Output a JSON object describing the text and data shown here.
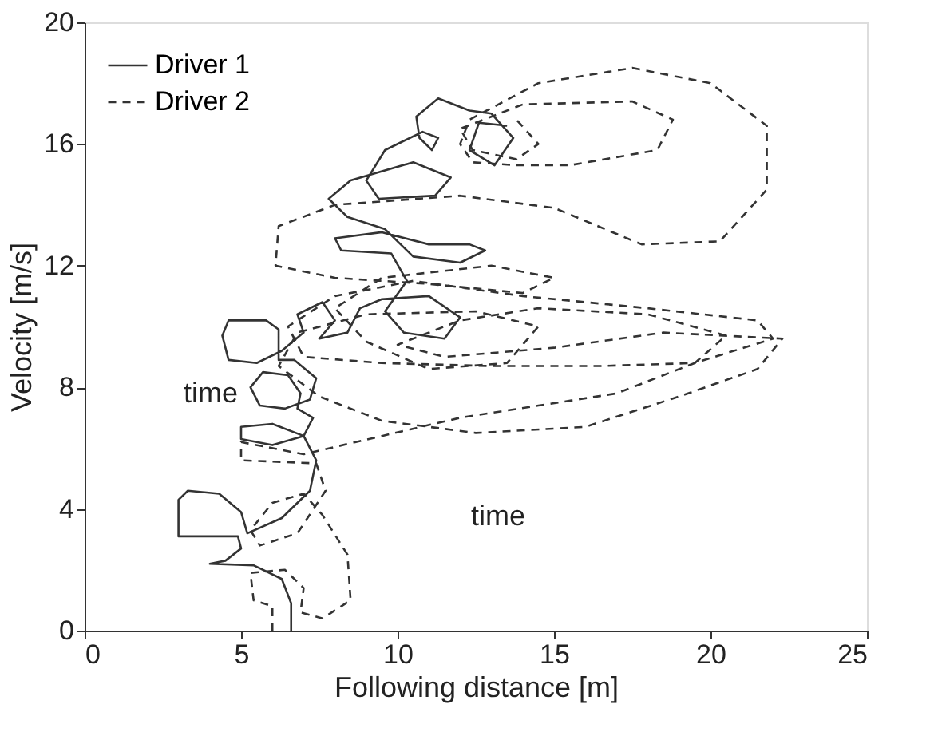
{
  "chart_data": {
    "type": "line",
    "xlabel": "Following distance [m]",
    "ylabel": "Velocity [m/s]",
    "xlim": [
      0,
      25
    ],
    "xticks": [
      0,
      5,
      10,
      15,
      20,
      25
    ],
    "ylim": [
      0,
      20
    ],
    "yticks": [
      0,
      4,
      8,
      12,
      16,
      20
    ],
    "grid": false,
    "legend": "top left",
    "marker": "none",
    "annotations": [
      "time",
      "time"
    ],
    "series": [
      {
        "name": "Driver 1",
        "color": "#333333",
        "line_style": "solid",
        "x": [
          6.6,
          6.6,
          6.3,
          5.4,
          4.0,
          4.5,
          5.0,
          4.9,
          3.0,
          3.0,
          3.3,
          4.3,
          5.0,
          5.2,
          6.3,
          7.2,
          7.4,
          7.0,
          6.0,
          5.0,
          5.0,
          6.0,
          7.0,
          7.3,
          6.8,
          6.9,
          6.5,
          5.7,
          5.3,
          5.6,
          6.4,
          7.2,
          7.4,
          6.7,
          6.2,
          6.2,
          5.8,
          4.6,
          4.4,
          4.6,
          5.5,
          6.3,
          7.0,
          6.8,
          7.6,
          8.0,
          7.5,
          8.4,
          8.8,
          9.5,
          11.0,
          12.0,
          11.5,
          10.2,
          9.6,
          10.3,
          9.8,
          8.2,
          8.0,
          9.5,
          11.0,
          12.3,
          12.8,
          12.0,
          10.5,
          9.6,
          8.4,
          7.8,
          8.5,
          10.5,
          11.7,
          11.2,
          9.4,
          9.0,
          9.6,
          10.8,
          11.3,
          11.1,
          10.7,
          10.6,
          11.3,
          12.3,
          13.0,
          13.7,
          13.1,
          12.3,
          12.6,
          13.5
        ],
        "values": [
          0,
          0.9,
          1.7,
          2.15,
          2.2,
          2.3,
          2.7,
          3.1,
          3.1,
          4.3,
          4.6,
          4.5,
          3.9,
          3.2,
          3.7,
          4.6,
          5.6,
          6.4,
          6.8,
          6.7,
          6.3,
          6.1,
          6.4,
          7.0,
          7.3,
          7.8,
          8.4,
          8.5,
          8.0,
          7.4,
          7.3,
          7.6,
          8.3,
          8.9,
          8.9,
          9.9,
          10.2,
          10.2,
          9.7,
          8.9,
          8.8,
          9.2,
          9.8,
          10.4,
          10.8,
          10.2,
          9.6,
          9.8,
          10.6,
          10.9,
          11.0,
          10.3,
          9.6,
          9.8,
          10.5,
          11.5,
          12.4,
          12.5,
          12.9,
          13.1,
          12.7,
          12.7,
          12.5,
          12.1,
          12.3,
          13.2,
          13.6,
          14.2,
          14.8,
          15.4,
          14.9,
          14.3,
          14.2,
          14.8,
          15.8,
          16.4,
          16.2,
          15.8,
          16.2,
          16.9,
          17.5,
          17.1,
          17.0,
          16.2,
          15.3,
          15.8,
          16.7,
          16.6
        ]
      },
      {
        "name": "Driver 2",
        "color": "#333333",
        "line_style": "dashed",
        "x": [
          6.0,
          6.0,
          5.4,
          5.3,
          6.4,
          7.0,
          6.9,
          7.6,
          8.5,
          8.4,
          7.6,
          7.0,
          6.0,
          5.3,
          5.6,
          6.8,
          7.7,
          7.4,
          5.0,
          5.0,
          7.0,
          9.5,
          12.0,
          14.5,
          17.0,
          19.5,
          22.0,
          21.5,
          18.0,
          14.0,
          10.5,
          8.0,
          6.5,
          7.0,
          9.5,
          13.0,
          16.5,
          19.5,
          20.5,
          18.0,
          14.5,
          12.0,
          10.0,
          11.5,
          15.0,
          18.5,
          22.3,
          21.5,
          19.0,
          16.0,
          12.5,
          9.5,
          7.5,
          6.2,
          6.8,
          9.0,
          12.5,
          14.5,
          13.5,
          11.0,
          9.0,
          8.0,
          9.5,
          13.0,
          15.0,
          14.0,
          11.0,
          8.0,
          6.1,
          6.2,
          8.0,
          12.0,
          15.0,
          17.8,
          20.3,
          21.8,
          21.8,
          20.0,
          17.5,
          14.5,
          12.3,
          12.0,
          12.4,
          13.8,
          15.5,
          18.3,
          18.8,
          17.5,
          14.0,
          12.0,
          12.4,
          13.8,
          14.5,
          13.8
        ],
        "values": [
          0,
          0.8,
          1.0,
          1.9,
          2.0,
          1.4,
          0.6,
          0.4,
          1.0,
          2.5,
          3.8,
          4.5,
          4.2,
          3.3,
          2.8,
          3.2,
          4.6,
          5.5,
          5.6,
          6.2,
          5.8,
          6.4,
          7.0,
          7.4,
          7.8,
          8.8,
          9.6,
          10.2,
          10.6,
          11.0,
          11.5,
          11.0,
          10.0,
          9.0,
          8.8,
          8.7,
          8.7,
          8.8,
          9.7,
          10.4,
          10.6,
          10.2,
          9.4,
          9.0,
          9.3,
          9.8,
          9.6,
          8.6,
          7.7,
          6.7,
          6.5,
          6.9,
          7.7,
          8.7,
          9.8,
          10.4,
          10.5,
          10.0,
          8.8,
          8.6,
          9.5,
          10.6,
          11.6,
          12.0,
          11.6,
          11.1,
          11.4,
          11.6,
          12.0,
          13.3,
          14.0,
          14.3,
          13.9,
          12.7,
          12.8,
          14.5,
          16.6,
          18.0,
          18.5,
          18.0,
          16.8,
          16.0,
          15.4,
          15.3,
          15.3,
          15.8,
          16.8,
          17.4,
          17.3,
          16.5,
          15.8,
          15.5,
          16.0,
          16.8
        ]
      }
    ]
  }
}
